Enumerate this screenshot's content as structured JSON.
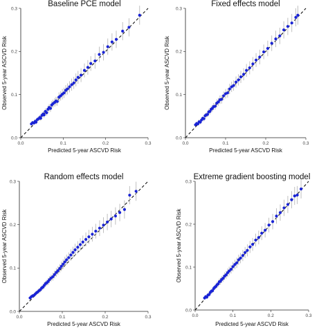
{
  "colors": {
    "point": "#1a24d6",
    "error_bar": "#b8b8b8",
    "reference": "#111111"
  },
  "chart_data": [
    {
      "type": "scatter",
      "title": "Baseline PCE model",
      "xlabel": "Predicted 5-year ASCVD Risk",
      "ylabel": "Observed 5-year ASCVD Risk",
      "xlim": [
        0,
        0.3
      ],
      "ylim": [
        0,
        0.3
      ],
      "xticks": [
        "0.0",
        "0.1",
        "0.2",
        "0.3"
      ],
      "yticks": [
        "0.0",
        "0.1",
        "0.2",
        "0.3"
      ],
      "reference_line": "y = x",
      "points": [
        [
          0.025,
          0.032
        ],
        [
          0.028,
          0.035
        ],
        [
          0.031,
          0.034
        ],
        [
          0.034,
          0.038
        ],
        [
          0.036,
          0.036
        ],
        [
          0.039,
          0.042
        ],
        [
          0.042,
          0.044
        ],
        [
          0.045,
          0.047
        ],
        [
          0.047,
          0.045
        ],
        [
          0.05,
          0.052
        ],
        [
          0.053,
          0.055
        ],
        [
          0.055,
          0.053
        ],
        [
          0.058,
          0.061
        ],
        [
          0.061,
          0.058
        ],
        [
          0.064,
          0.066
        ],
        [
          0.067,
          0.07
        ],
        [
          0.07,
          0.068
        ],
        [
          0.073,
          0.076
        ],
        [
          0.076,
          0.079
        ],
        [
          0.08,
          0.082
        ],
        [
          0.083,
          0.085
        ],
        [
          0.086,
          0.084
        ],
        [
          0.09,
          0.094
        ],
        [
          0.094,
          0.097
        ],
        [
          0.098,
          0.101
        ],
        [
          0.102,
          0.104
        ],
        [
          0.106,
          0.11
        ],
        [
          0.11,
          0.113
        ],
        [
          0.115,
          0.118
        ],
        [
          0.12,
          0.123
        ],
        [
          0.125,
          0.127
        ],
        [
          0.13,
          0.134
        ],
        [
          0.135,
          0.14
        ],
        [
          0.142,
          0.145
        ],
        [
          0.15,
          0.156
        ],
        [
          0.158,
          0.163
        ],
        [
          0.165,
          0.172
        ],
        [
          0.175,
          0.178
        ],
        [
          0.185,
          0.193
        ],
        [
          0.195,
          0.198
        ],
        [
          0.205,
          0.211
        ],
        [
          0.215,
          0.222
        ],
        [
          0.225,
          0.228
        ],
        [
          0.24,
          0.247
        ],
        [
          0.255,
          0.256
        ],
        [
          0.28,
          0.284
        ]
      ],
      "error_halfwidth": [
        0.004,
        0.004,
        0.004,
        0.005,
        0.005,
        0.005,
        0.005,
        0.006,
        0.006,
        0.006,
        0.006,
        0.007,
        0.007,
        0.007,
        0.008,
        0.008,
        0.008,
        0.009,
        0.009,
        0.01,
        0.01,
        0.01,
        0.011,
        0.011,
        0.012,
        0.012,
        0.012,
        0.013,
        0.013,
        0.014,
        0.014,
        0.015,
        0.015,
        0.016,
        0.016,
        0.017,
        0.017,
        0.018,
        0.018,
        0.019,
        0.019,
        0.02,
        0.02,
        0.021,
        0.021,
        0.022
      ]
    },
    {
      "type": "scatter",
      "title": "Fixed effects model",
      "xlabel": "Predicted 5-year ASCVD Risk",
      "ylabel": "Observed 5-year ASCVD Risk",
      "xlim": [
        0,
        0.3
      ],
      "ylim": [
        0,
        0.3
      ],
      "xticks": [
        "0.0",
        "0.1",
        "0.2",
        "0.3"
      ],
      "yticks": [
        "0.0",
        "0.1",
        "0.2",
        "0.3"
      ],
      "reference_line": "y = x",
      "points": [
        [
          0.025,
          0.03
        ],
        [
          0.028,
          0.033
        ],
        [
          0.031,
          0.032
        ],
        [
          0.034,
          0.037
        ],
        [
          0.037,
          0.036
        ],
        [
          0.04,
          0.041
        ],
        [
          0.043,
          0.045
        ],
        [
          0.046,
          0.044
        ],
        [
          0.049,
          0.051
        ],
        [
          0.052,
          0.053
        ],
        [
          0.055,
          0.054
        ],
        [
          0.058,
          0.06
        ],
        [
          0.061,
          0.061
        ],
        [
          0.064,
          0.066
        ],
        [
          0.067,
          0.068
        ],
        [
          0.07,
          0.072
        ],
        [
          0.074,
          0.073
        ],
        [
          0.078,
          0.08
        ],
        [
          0.082,
          0.083
        ],
        [
          0.086,
          0.088
        ],
        [
          0.09,
          0.089
        ],
        [
          0.095,
          0.097
        ],
        [
          0.1,
          0.102
        ],
        [
          0.105,
          0.104
        ],
        [
          0.11,
          0.113
        ],
        [
          0.115,
          0.118
        ],
        [
          0.12,
          0.121
        ],
        [
          0.126,
          0.129
        ],
        [
          0.132,
          0.134
        ],
        [
          0.138,
          0.141
        ],
        [
          0.145,
          0.147
        ],
        [
          0.152,
          0.156
        ],
        [
          0.16,
          0.162
        ],
        [
          0.168,
          0.171
        ],
        [
          0.176,
          0.18
        ],
        [
          0.185,
          0.187
        ],
        [
          0.195,
          0.199
        ],
        [
          0.205,
          0.207
        ],
        [
          0.215,
          0.219
        ],
        [
          0.225,
          0.229
        ],
        [
          0.235,
          0.236
        ],
        [
          0.245,
          0.25
        ],
        [
          0.255,
          0.258
        ],
        [
          0.265,
          0.266
        ],
        [
          0.275,
          0.279
        ],
        [
          0.28,
          0.284
        ]
      ],
      "error_halfwidth": [
        0.004,
        0.004,
        0.004,
        0.005,
        0.005,
        0.005,
        0.005,
        0.006,
        0.006,
        0.006,
        0.006,
        0.007,
        0.007,
        0.007,
        0.008,
        0.008,
        0.008,
        0.009,
        0.009,
        0.01,
        0.01,
        0.01,
        0.011,
        0.011,
        0.012,
        0.012,
        0.012,
        0.013,
        0.013,
        0.014,
        0.014,
        0.015,
        0.015,
        0.016,
        0.016,
        0.017,
        0.017,
        0.018,
        0.018,
        0.019,
        0.019,
        0.02,
        0.02,
        0.021,
        0.021,
        0.022
      ]
    },
    {
      "type": "scatter",
      "title": "Random effects model",
      "xlabel": "Predicted 5-year ASCVD Risk",
      "ylabel": "Observed 5-year ASCVD Risk",
      "xlim": [
        0,
        0.3
      ],
      "ylim": [
        0,
        0.3
      ],
      "xticks": [
        "0.0",
        "0.1",
        "0.2",
        "0.3"
      ],
      "yticks": [
        "0.0",
        "0.1",
        "0.2",
        "0.3"
      ],
      "reference_line": "y = x",
      "points": [
        [
          0.025,
          0.031
        ],
        [
          0.028,
          0.034
        ],
        [
          0.031,
          0.036
        ],
        [
          0.034,
          0.037
        ],
        [
          0.037,
          0.04
        ],
        [
          0.04,
          0.043
        ],
        [
          0.043,
          0.045
        ],
        [
          0.046,
          0.048
        ],
        [
          0.049,
          0.05
        ],
        [
          0.052,
          0.054
        ],
        [
          0.055,
          0.056
        ],
        [
          0.058,
          0.06
        ],
        [
          0.061,
          0.064
        ],
        [
          0.064,
          0.066
        ],
        [
          0.067,
          0.069
        ],
        [
          0.07,
          0.073
        ],
        [
          0.074,
          0.077
        ],
        [
          0.078,
          0.08
        ],
        [
          0.082,
          0.085
        ],
        [
          0.086,
          0.09
        ],
        [
          0.09,
          0.094
        ],
        [
          0.094,
          0.099
        ],
        [
          0.098,
          0.104
        ],
        [
          0.102,
          0.109
        ],
        [
          0.106,
          0.114
        ],
        [
          0.11,
          0.119
        ],
        [
          0.115,
          0.124
        ],
        [
          0.12,
          0.13
        ],
        [
          0.125,
          0.136
        ],
        [
          0.13,
          0.142
        ],
        [
          0.136,
          0.148
        ],
        [
          0.142,
          0.154
        ],
        [
          0.148,
          0.16
        ],
        [
          0.155,
          0.166
        ],
        [
          0.162,
          0.172
        ],
        [
          0.17,
          0.178
        ],
        [
          0.178,
          0.185
        ],
        [
          0.187,
          0.192
        ],
        [
          0.196,
          0.199
        ],
        [
          0.205,
          0.206
        ],
        [
          0.214,
          0.213
        ],
        [
          0.224,
          0.22
        ],
        [
          0.234,
          0.228
        ],
        [
          0.245,
          0.235
        ],
        [
          0.257,
          0.268
        ],
        [
          0.272,
          0.277
        ]
      ],
      "error_halfwidth": [
        0.004,
        0.004,
        0.004,
        0.005,
        0.005,
        0.005,
        0.005,
        0.006,
        0.006,
        0.006,
        0.006,
        0.007,
        0.007,
        0.007,
        0.008,
        0.008,
        0.008,
        0.009,
        0.009,
        0.01,
        0.01,
        0.01,
        0.011,
        0.011,
        0.012,
        0.012,
        0.012,
        0.013,
        0.013,
        0.014,
        0.014,
        0.015,
        0.015,
        0.016,
        0.016,
        0.017,
        0.017,
        0.018,
        0.018,
        0.019,
        0.019,
        0.02,
        0.02,
        0.021,
        0.021,
        0.022
      ]
    },
    {
      "type": "scatter",
      "title": "Extreme gradient boosting model",
      "xlabel": "Predicted 5-year ASCVD Risk",
      "ylabel": "Observed 5-year ASCVD Risk",
      "xlim": [
        0,
        0.3
      ],
      "ylim": [
        0,
        0.3
      ],
      "xticks": [
        "0.0",
        "0.1",
        "0.2",
        "0.3"
      ],
      "yticks": [
        "0.0",
        "0.1",
        "0.2",
        "0.3"
      ],
      "reference_line": "y = x",
      "points": [
        [
          0.025,
          0.028
        ],
        [
          0.028,
          0.031
        ],
        [
          0.031,
          0.03
        ],
        [
          0.034,
          0.035
        ],
        [
          0.037,
          0.036
        ],
        [
          0.04,
          0.041
        ],
        [
          0.043,
          0.044
        ],
        [
          0.046,
          0.045
        ],
        [
          0.049,
          0.05
        ],
        [
          0.052,
          0.053
        ],
        [
          0.055,
          0.055
        ],
        [
          0.058,
          0.059
        ],
        [
          0.061,
          0.061
        ],
        [
          0.064,
          0.066
        ],
        [
          0.067,
          0.067
        ],
        [
          0.07,
          0.071
        ],
        [
          0.074,
          0.074
        ],
        [
          0.078,
          0.079
        ],
        [
          0.082,
          0.082
        ],
        [
          0.086,
          0.087
        ],
        [
          0.09,
          0.091
        ],
        [
          0.095,
          0.095
        ],
        [
          0.1,
          0.101
        ],
        [
          0.105,
          0.106
        ],
        [
          0.11,
          0.11
        ],
        [
          0.115,
          0.117
        ],
        [
          0.12,
          0.121
        ],
        [
          0.126,
          0.127
        ],
        [
          0.132,
          0.134
        ],
        [
          0.138,
          0.139
        ],
        [
          0.145,
          0.147
        ],
        [
          0.152,
          0.153
        ],
        [
          0.16,
          0.163
        ],
        [
          0.168,
          0.169
        ],
        [
          0.176,
          0.179
        ],
        [
          0.185,
          0.186
        ],
        [
          0.195,
          0.198
        ],
        [
          0.205,
          0.206
        ],
        [
          0.215,
          0.219
        ],
        [
          0.225,
          0.227
        ],
        [
          0.235,
          0.238
        ],
        [
          0.245,
          0.246
        ],
        [
          0.255,
          0.257
        ],
        [
          0.263,
          0.266
        ],
        [
          0.27,
          0.268
        ],
        [
          0.28,
          0.282
        ]
      ],
      "error_halfwidth": [
        0.004,
        0.004,
        0.004,
        0.005,
        0.005,
        0.005,
        0.005,
        0.006,
        0.006,
        0.006,
        0.006,
        0.007,
        0.007,
        0.007,
        0.008,
        0.008,
        0.008,
        0.009,
        0.009,
        0.01,
        0.01,
        0.01,
        0.011,
        0.011,
        0.012,
        0.012,
        0.012,
        0.013,
        0.013,
        0.014,
        0.014,
        0.015,
        0.015,
        0.016,
        0.016,
        0.017,
        0.017,
        0.018,
        0.018,
        0.019,
        0.019,
        0.02,
        0.02,
        0.021,
        0.021,
        0.022
      ]
    }
  ]
}
